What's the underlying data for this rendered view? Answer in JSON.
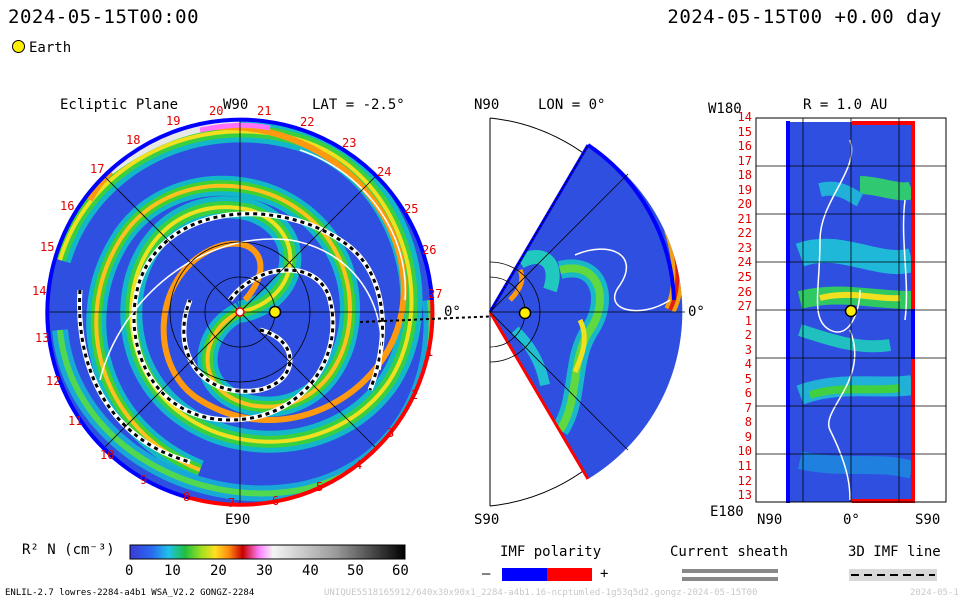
{
  "header": {
    "left_time": "2024-05-15T00:00",
    "right_time": "2024-05-15T00 +0.00 day",
    "legend_earth": "Earth"
  },
  "panel_ecliptic": {
    "title": "Ecliptic Plane",
    "top_label": "W90",
    "lat_label": "LAT = -2.5°",
    "bottom_label": "E90",
    "zero_label": "0°",
    "rot_numbers": [
      "17",
      "18",
      "19",
      "20",
      "21",
      "22",
      "23",
      "24",
      "25",
      "26",
      "27",
      "14",
      "15",
      "16",
      "13",
      "12",
      "11",
      "10",
      "9",
      "8",
      "7",
      "6",
      "5",
      "4",
      "3",
      "2",
      "1"
    ]
  },
  "panel_meridional": {
    "top_label": "N90",
    "lon_label": "LON = 0°",
    "bottom_label": "S90",
    "zero_label": "0°"
  },
  "panel_r": {
    "title": "R = 1.0 AU",
    "top_label": "W180",
    "bottom_label": "E180",
    "x_left": "N90",
    "x_mid": "0°",
    "x_right": "S90",
    "y_ticks": [
      "14",
      "15",
      "16",
      "17",
      "18",
      "19",
      "20",
      "21",
      "22",
      "23",
      "24",
      "25",
      "26",
      "27",
      "1",
      "2",
      "3",
      "4",
      "5",
      "6",
      "7",
      "8",
      "9",
      "10",
      "11",
      "12",
      "13"
    ]
  },
  "colorbar": {
    "label": "R² N (cm⁻³)",
    "ticks": [
      "0",
      "10",
      "20",
      "30",
      "40",
      "50",
      "60"
    ]
  },
  "legends": {
    "imf_polarity": "IMF polarity",
    "minus": "–",
    "plus": "+",
    "current_sheath": "Current sheath",
    "imf_line": "3D IMF line"
  },
  "footer": {
    "model": "ENLIL-2.7 lowres-2284-a4b1 WSA_V2.2 GONGZ-2284",
    "run_id": "UNIQUE5518165912/640x30x90x1_2284-a4b1.16-ncptumled-1g53q5d2.gongz-2024-05-15T00",
    "date_tail": "2024-05-1"
  },
  "colors": {
    "positive_polarity": "#ff0000",
    "negative_polarity": "#0000ff",
    "background_low": "#2a4bd8",
    "earth": "#ffee00"
  }
}
